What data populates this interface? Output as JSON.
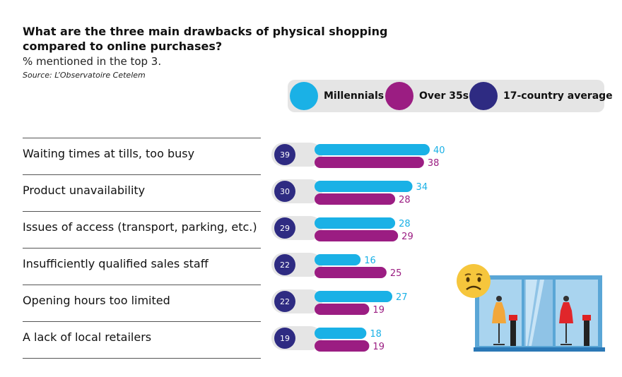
{
  "chart_data": {
    "type": "bar",
    "title": "What are the three main drawbacks of physical shopping compared to online purchases?",
    "subtitle": "% mentioned in the top 3.",
    "source": "Source: L’Observatoire Cetelem",
    "categories": [
      "Waiting times at tills, too busy",
      "Product unavailability",
      "Issues of access (transport, parking, etc.)",
      "Insufficiently qualified sales staff",
      "Opening hours too limited",
      "A lack of local retailers"
    ],
    "series": [
      {
        "name": "Millennials",
        "color": "#1ab1e6",
        "values": [
          40,
          34,
          28,
          16,
          27,
          18
        ]
      },
      {
        "name": "Over 35s",
        "color": "#9b1d82",
        "values": [
          38,
          28,
          29,
          25,
          19,
          19
        ]
      },
      {
        "name": "17-country average",
        "color": "#2e2b82",
        "values": [
          39,
          30,
          29,
          22,
          22,
          19
        ]
      }
    ],
    "xlim": [
      0,
      40
    ],
    "legend_position": "top-right"
  },
  "colors": {
    "millennials": "#1ab1e6",
    "over35": "#9b1d82",
    "average": "#2e2b82",
    "track": "#e5e5e5"
  },
  "illustration": {
    "name": "sad-face-shop-window-icon"
  }
}
